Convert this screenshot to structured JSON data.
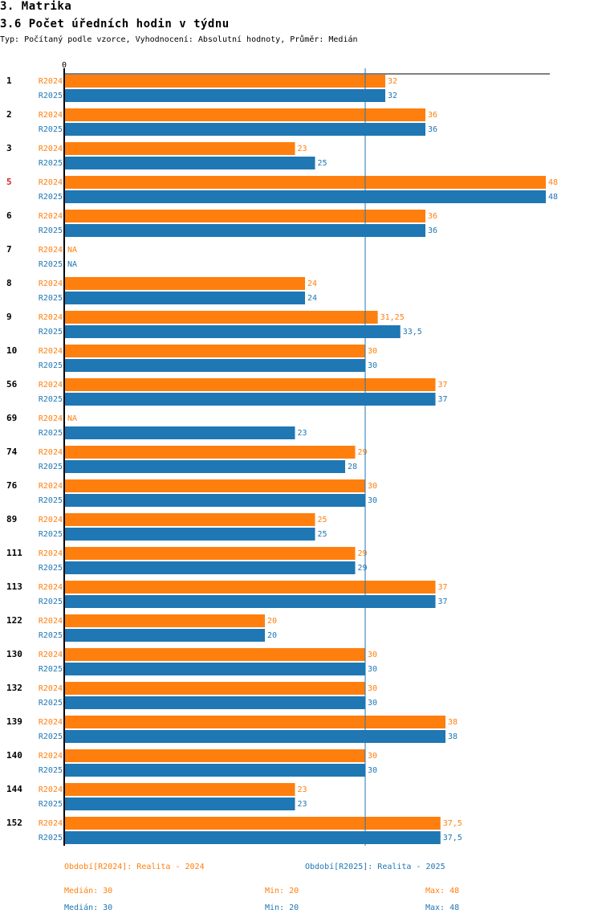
{
  "page": {
    "section_title": "3. Matrika",
    "chart_title": "3.6 Počet úředních hodin v týdnu",
    "subtitle": "Typ: Počítaný podle vzorce, Vyhodnocení: Absolutní hodnoty, Průměr: Medián"
  },
  "chart_data": {
    "type": "bar",
    "orientation": "horizontal",
    "title": "3.6 Počet úředních hodin v týdnu",
    "axis_zero_label": "0",
    "xlim": [
      0,
      48
    ],
    "reference_line": 30,
    "highlight_category": "5",
    "categories": [
      "1",
      "2",
      "3",
      "5",
      "6",
      "7",
      "8",
      "9",
      "10",
      "56",
      "69",
      "74",
      "76",
      "89",
      "111",
      "113",
      "122",
      "130",
      "132",
      "139",
      "140",
      "144",
      "152"
    ],
    "series": [
      {
        "name": "R2024",
        "color": "#ff7f0e",
        "values": [
          32,
          36,
          23,
          48,
          36,
          null,
          24,
          31.25,
          30,
          37,
          null,
          29,
          30,
          25,
          29,
          37,
          20,
          30,
          30,
          38,
          30,
          23,
          37.5
        ],
        "labels": [
          "32",
          "36",
          "23",
          "48",
          "36",
          "NA",
          "24",
          "31,25",
          "30",
          "37",
          "NA",
          "29",
          "30",
          "25",
          "29",
          "37",
          "20",
          "30",
          "30",
          "38",
          "30",
          "23",
          "37,5"
        ]
      },
      {
        "name": "R2025",
        "color": "#1f77b4",
        "values": [
          32,
          36,
          25,
          48,
          36,
          null,
          24,
          33.5,
          30,
          37,
          23,
          28,
          30,
          25,
          29,
          37,
          20,
          30,
          30,
          38,
          30,
          23,
          37.5
        ],
        "labels": [
          "32",
          "36",
          "25",
          "48",
          "36",
          "NA",
          "24",
          "33,5",
          "30",
          "37",
          "23",
          "28",
          "30",
          "25",
          "29",
          "37",
          "20",
          "30",
          "30",
          "38",
          "30",
          "23",
          "37,5"
        ]
      }
    ]
  },
  "legend": {
    "r2024": "Období[R2024]: Realita - 2024",
    "r2025": "Období[R2025]: Realita - 2025",
    "stats_2024": {
      "median": "Medián: 30",
      "min": "Min: 20",
      "max": "Max: 48"
    },
    "stats_2025": {
      "median": "Medián: 30",
      "min": "Min: 20",
      "max": "Max: 48"
    }
  },
  "colors": {
    "r2024": "#ff7f0e",
    "r2025": "#1f77b4",
    "highlight": "#d62728",
    "axis": "#000000"
  }
}
